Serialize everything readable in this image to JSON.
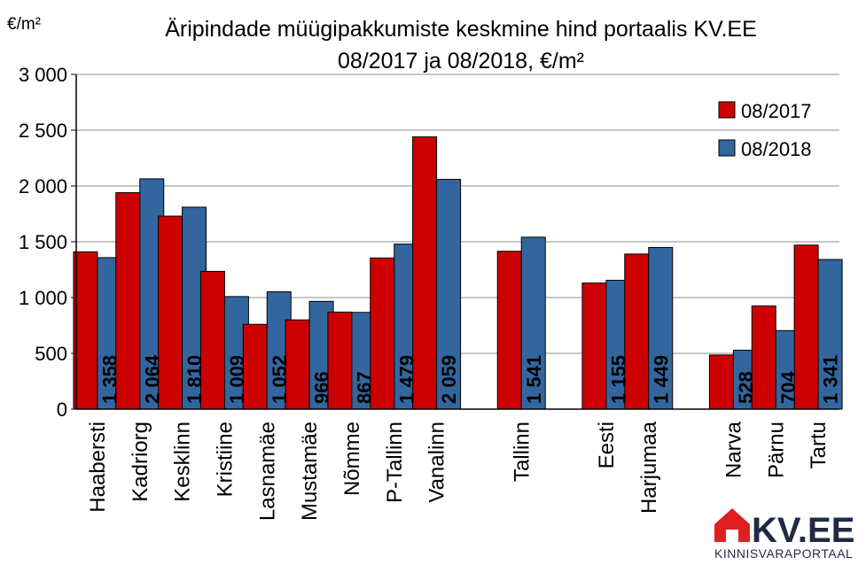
{
  "chart_data": {
    "type": "bar",
    "title_line1": "Äripindade müügipakkumiste keskmine hind portaalis KV.EE",
    "title_line2": "08/2017 ja 08/2018, €/m²",
    "ylabel": "€/m²",
    "ylim": [
      0,
      3000
    ],
    "yticks": [
      0,
      500,
      1000,
      1500,
      2000,
      2500,
      3000
    ],
    "ytick_labels": [
      "0",
      "500",
      "1 000",
      "1 500",
      "2 000",
      "2 500",
      "3 000"
    ],
    "grid": true,
    "legend_position": "top-right",
    "categories": [
      "Haabersti",
      "Kadriorg",
      "Kesklinn",
      "Kristiine",
      "Lasnamäe",
      "Mustamäe",
      "Nõmme",
      "P-Tallinn",
      "Vanalinn",
      "",
      "Tallinn",
      "",
      "Eesti",
      "Harjumaa",
      "",
      "Narva",
      "Pärnu",
      "Tartu"
    ],
    "series": [
      {
        "name": "08/2017",
        "color": "#cc0000",
        "values": [
          1410,
          1940,
          1730,
          1235,
          760,
          800,
          870,
          1355,
          2440,
          null,
          1415,
          null,
          1130,
          1390,
          null,
          485,
          925,
          1470
        ]
      },
      {
        "name": "08/2018",
        "color": "#33669e",
        "values": [
          1358,
          2064,
          1810,
          1009,
          1052,
          966,
          867,
          1479,
          2059,
          null,
          1541,
          null,
          1155,
          1449,
          null,
          528,
          704,
          1341
        ],
        "value_labels": [
          "1 358",
          "2 064",
          "1 810",
          "1 009",
          "1 052",
          "966",
          "867",
          "1 479",
          "2 059",
          "",
          "1 541",
          "",
          "1 155",
          "1 449",
          "",
          "528",
          "704",
          "1 341"
        ]
      }
    ]
  },
  "logo": {
    "text": "KV.EE",
    "subtitle": "KINNISVARAPORTAAL",
    "accent_color": "#e02020"
  }
}
